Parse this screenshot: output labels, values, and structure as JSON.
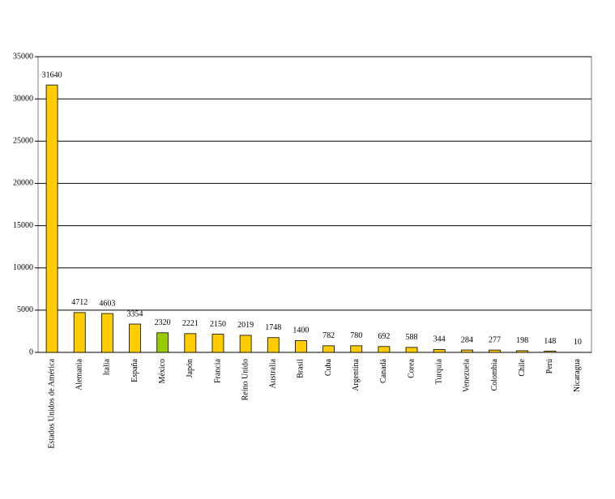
{
  "chart_data": {
    "type": "bar",
    "categories": [
      "Estados Unidos de América",
      "Alemania",
      "Italia",
      "España",
      "México",
      "Japón",
      "Francia",
      "Reino Unido",
      "Australia",
      "Brasil",
      "Cuba",
      "Argentina",
      "Canadá",
      "Corea",
      "Turquía",
      "Venezuela",
      "Colombia",
      "Chile",
      "Perú",
      "Nicaragua"
    ],
    "values": [
      31640,
      4712,
      4603,
      3354,
      2320,
      2221,
      2150,
      2019,
      1748,
      1400,
      782,
      780,
      692,
      588,
      344,
      284,
      277,
      198,
      148,
      10
    ],
    "colors": [
      "#ffcc00",
      "#ffcc00",
      "#ffcc00",
      "#ffcc00",
      "#99cc00",
      "#ffcc00",
      "#ffcc00",
      "#ffcc00",
      "#ffcc00",
      "#ffcc00",
      "#ffcc00",
      "#ffcc00",
      "#ffcc00",
      "#ffcc00",
      "#ffcc00",
      "#ffcc00",
      "#ffcc00",
      "#ffcc00",
      "#ffcc00",
      "#ffcc00"
    ],
    "ylim": [
      0,
      35000
    ],
    "yticks": [
      0,
      5000,
      10000,
      15000,
      20000,
      25000,
      30000,
      35000
    ],
    "grid": true
  }
}
